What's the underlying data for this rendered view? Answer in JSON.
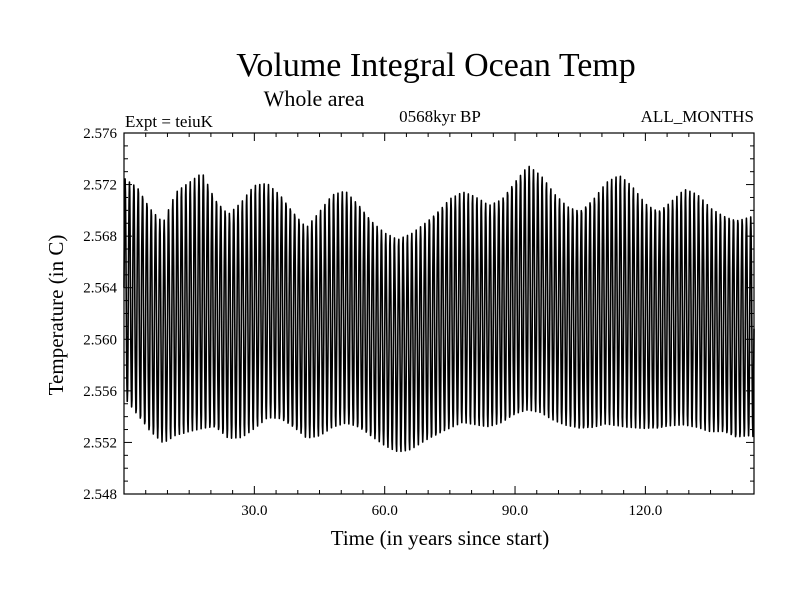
{
  "chart_data": {
    "type": "line",
    "title": "Volume Integral Ocean Temp",
    "subtitle": "Whole area",
    "experiment_label": "Expt = teiuK",
    "period_label": "0568kyr BP",
    "months_label": "ALL_MONTHS",
    "xlabel": "Time (in years since start)",
    "ylabel": "Temperature (in C)",
    "xlim": [
      0,
      145
    ],
    "ylim": [
      2.548,
      2.576
    ],
    "x_ticks": [
      30.0,
      60.0,
      90.0,
      120.0
    ],
    "x_tick_labels": [
      "30.0",
      "60.0",
      "90.0",
      "120.0"
    ],
    "y_ticks": [
      2.548,
      2.552,
      2.556,
      2.56,
      2.564,
      2.568,
      2.572,
      2.576
    ],
    "y_tick_labels": [
      "2.548",
      "2.552",
      "2.556",
      "2.560",
      "2.564",
      "2.568",
      "2.572",
      "2.576"
    ],
    "series": [
      {
        "name": "ALL_MONTHS",
        "annual_cycle_months": 12,
        "annual_mean": {
          "years": [
            0,
            3,
            6,
            9,
            12,
            15,
            18,
            21,
            24,
            27,
            30,
            33,
            36,
            39,
            42,
            45,
            48,
            51,
            54,
            57,
            60,
            63,
            66,
            69,
            72,
            75,
            78,
            81,
            84,
            87,
            90,
            93,
            96,
            99,
            102,
            105,
            108,
            111,
            114,
            117,
            120,
            123,
            126,
            129,
            132,
            135,
            138,
            141,
            144
          ],
          "values": [
            2.564,
            2.563,
            2.5615,
            2.5605,
            2.562,
            2.5625,
            2.563,
            2.562,
            2.561,
            2.5615,
            2.5625,
            2.563,
            2.5625,
            2.5615,
            2.5605,
            2.5612,
            2.5622,
            2.5625,
            2.5618,
            2.5608,
            2.56,
            2.5595,
            2.5598,
            2.5605,
            2.5612,
            2.562,
            2.5625,
            2.5622,
            2.5618,
            2.5622,
            2.5632,
            2.564,
            2.5635,
            2.5625,
            2.5618,
            2.5615,
            2.562,
            2.5628,
            2.563,
            2.5625,
            2.5618,
            2.5615,
            2.562,
            2.5625,
            2.5622,
            2.5615,
            2.5612,
            2.5608,
            2.561
          ]
        },
        "seasonal_amplitude": {
          "years": [
            0,
            3,
            6,
            9,
            12,
            15,
            18,
            21,
            24,
            27,
            30,
            33,
            36,
            39,
            42,
            45,
            48,
            51,
            54,
            57,
            60,
            63,
            66,
            69,
            72,
            75,
            78,
            81,
            84,
            87,
            90,
            93,
            96,
            99,
            102,
            105,
            108,
            111,
            114,
            117,
            120,
            123,
            126,
            129,
            132,
            135,
            138,
            141,
            144
          ],
          "values": [
            0.0085,
            0.009,
            0.0088,
            0.0085,
            0.0092,
            0.0095,
            0.01,
            0.009,
            0.0088,
            0.009,
            0.0092,
            0.009,
            0.0088,
            0.0085,
            0.0082,
            0.0085,
            0.0088,
            0.009,
            0.0088,
            0.0085,
            0.0082,
            0.008,
            0.0082,
            0.0085,
            0.0088,
            0.009,
            0.0088,
            0.0086,
            0.0085,
            0.0088,
            0.0092,
            0.0095,
            0.009,
            0.0086,
            0.0085,
            0.0086,
            0.009,
            0.0093,
            0.0095,
            0.0092,
            0.0088,
            0.0086,
            0.0088,
            0.009,
            0.0088,
            0.0086,
            0.0085,
            0.0086,
            0.0085
          ]
        }
      }
    ]
  }
}
